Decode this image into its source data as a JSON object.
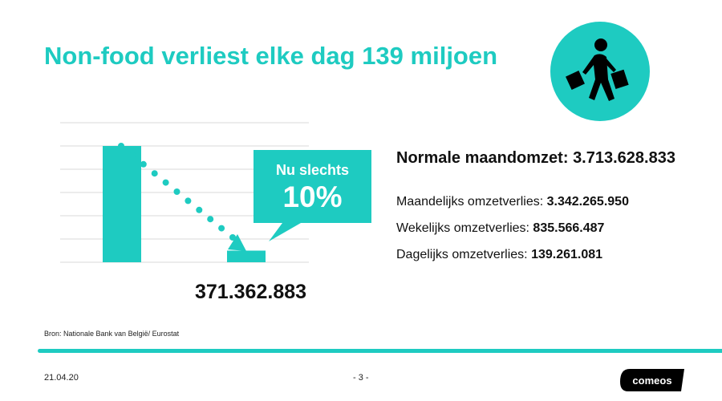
{
  "slide": {
    "title": "Non-food verliest elke dag 139 miljoen",
    "icon": "shopper-with-bags-icon",
    "accent_color": "#1ecbc1"
  },
  "callout": {
    "title": "Nu slechts",
    "value": "10%"
  },
  "stats": {
    "normal_label": "Normale maandomzet:",
    "normal_value": "3.713.628.833",
    "items": [
      {
        "label": "Maandelijks omzetverlies:",
        "value": "3.342.265.950"
      },
      {
        "label": "Wekelijks omzetverlies:",
        "value": "835.566.487"
      },
      {
        "label": "Dagelijks omzetverlies:",
        "value": "139.261.081"
      }
    ]
  },
  "chart_data": {
    "type": "bar",
    "categories": [
      "Normale maandomzet",
      "Nu"
    ],
    "values": [
      3713628833,
      371362883
    ],
    "data_labels": [
      "",
      "371.362.883"
    ],
    "ylim": [
      0,
      4456354600
    ],
    "grid": true,
    "bar_color": "#1ecbc1"
  },
  "footer": {
    "source": "Bron: Nationale Bank van België/ Eurostat",
    "date": "21.04.20",
    "page": "- 3 -",
    "logo": "comeos"
  }
}
